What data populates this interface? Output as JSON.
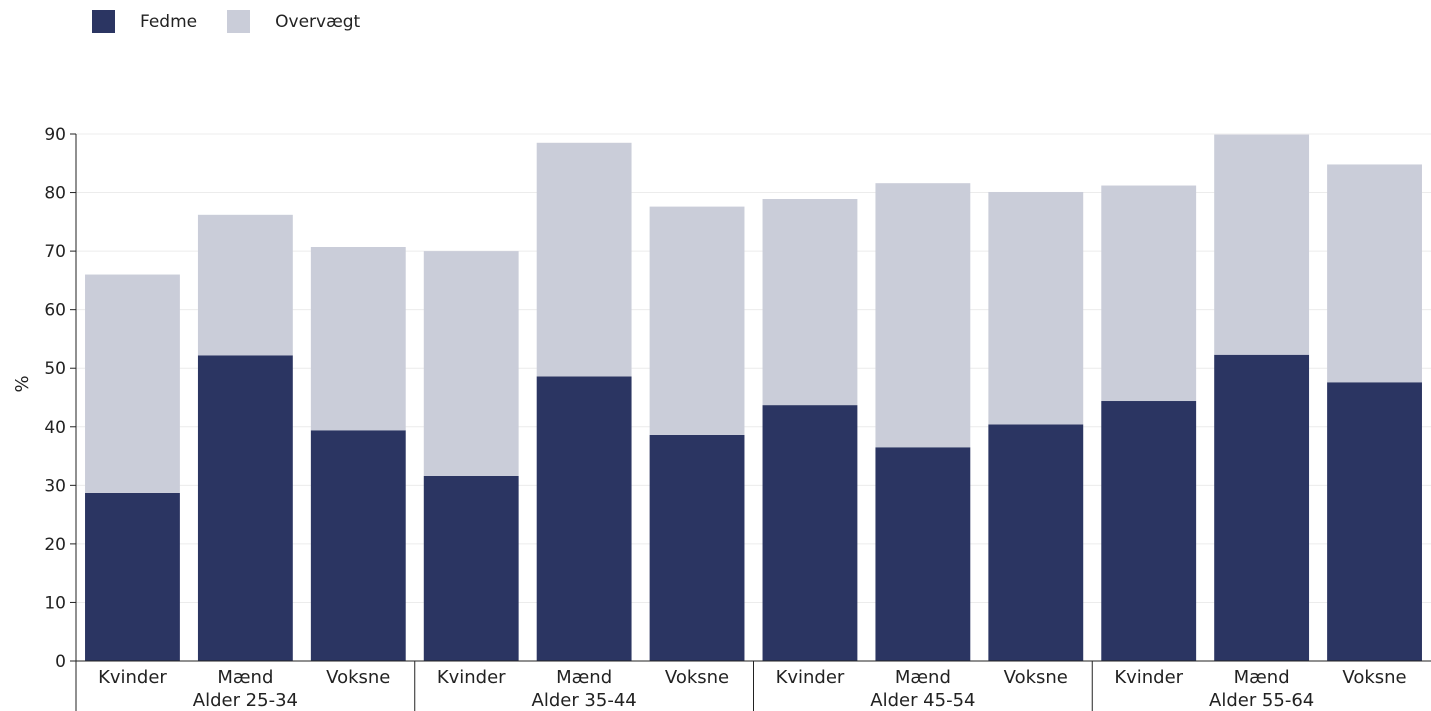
{
  "chart_data": {
    "type": "bar",
    "stacked": true,
    "ylabel": "%",
    "ylim": [
      0,
      90
    ],
    "yticks": [
      0,
      10,
      20,
      30,
      40,
      50,
      60,
      70,
      80,
      90
    ],
    "grid": true,
    "legend_position": "top-left",
    "groups": [
      {
        "label": "Alder 25-34",
        "categories": [
          "Kvinder",
          "Mænd",
          "Voksne"
        ]
      },
      {
        "label": "Alder 35-44",
        "categories": [
          "Kvinder",
          "Mænd",
          "Voksne"
        ]
      },
      {
        "label": "Alder 45-54",
        "categories": [
          "Kvinder",
          "Mænd",
          "Voksne"
        ]
      },
      {
        "label": "Alder 55-64",
        "categories": [
          "Kvinder",
          "Mænd",
          "Voksne"
        ]
      }
    ],
    "series": [
      {
        "name": "Fedme",
        "color": "#2b3562",
        "values": [
          28.7,
          52.2,
          39.4,
          31.6,
          48.6,
          38.6,
          43.7,
          36.5,
          40.4,
          44.4,
          52.3,
          47.6
        ]
      },
      {
        "name": "Overvægt",
        "color": "#cacdd9",
        "values": [
          37.3,
          24.0,
          31.3,
          38.4,
          39.9,
          39.0,
          35.2,
          45.1,
          39.7,
          36.8,
          37.6,
          37.2
        ]
      }
    ]
  }
}
